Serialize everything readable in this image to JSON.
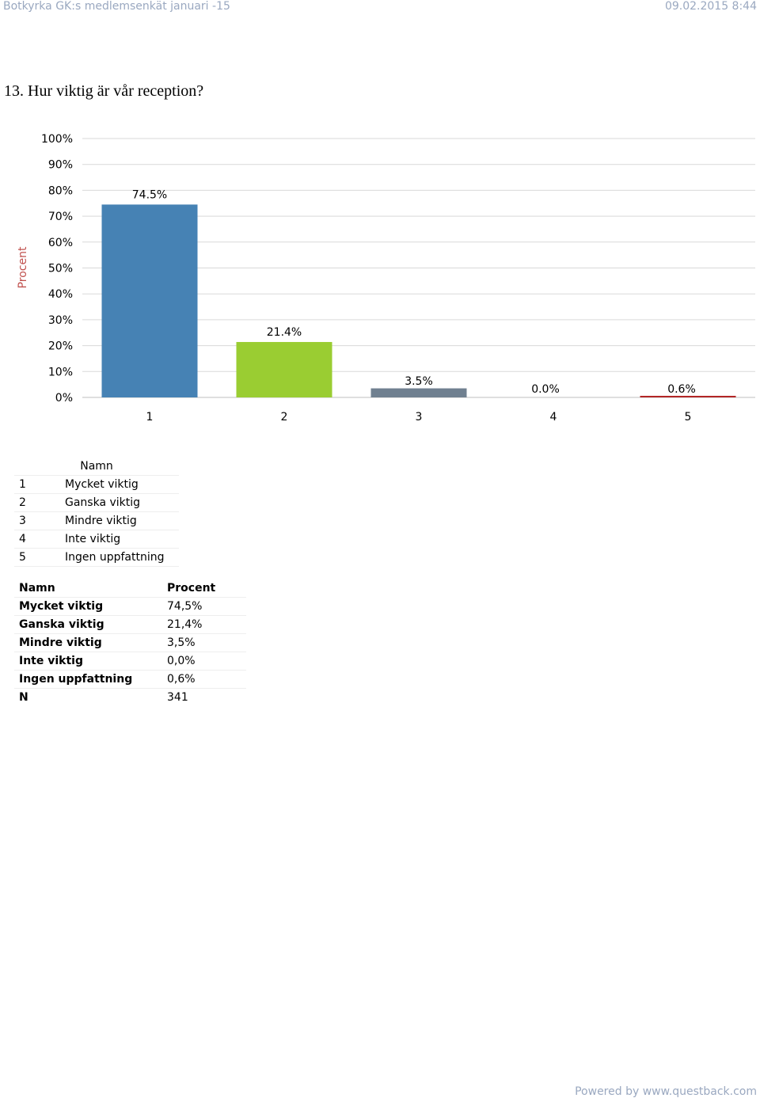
{
  "header": {
    "title": "Botkyrka GK:s medlemsenkät januari -15",
    "datetime": "09.02.2015 8:44"
  },
  "question": "13. Hur viktig är vår reception?",
  "chart_data": {
    "type": "bar",
    "categories": [
      "1",
      "2",
      "3",
      "4",
      "5"
    ],
    "values": [
      74.5,
      21.4,
      3.5,
      0.0,
      0.6
    ],
    "value_labels": [
      "74.5%",
      "21.4%",
      "3.5%",
      "0.0%",
      "0.6%"
    ],
    "colors": [
      "#4682b4",
      "#9acd32",
      "#708090",
      "#000080",
      "#b22222"
    ],
    "ylabel": "Procent",
    "ylim": [
      0,
      100
    ],
    "yticks": [
      "0%",
      "10%",
      "20%",
      "30%",
      "40%",
      "50%",
      "60%",
      "70%",
      "80%",
      "90%",
      "100%"
    ],
    "grid": true,
    "gridColor": "#d9d9d9"
  },
  "legend": {
    "header": "Namn",
    "rows": [
      {
        "num": "1",
        "label": "Mycket viktig"
      },
      {
        "num": "2",
        "label": "Ganska viktig"
      },
      {
        "num": "3",
        "label": "Mindre viktig"
      },
      {
        "num": "4",
        "label": "Inte viktig"
      },
      {
        "num": "5",
        "label": "Ingen uppfattning"
      }
    ]
  },
  "results": {
    "header_name": "Namn",
    "header_value": "Procent",
    "rows": [
      {
        "name": "Mycket viktig",
        "value": "74,5%"
      },
      {
        "name": "Ganska viktig",
        "value": "21,4%"
      },
      {
        "name": "Mindre viktig",
        "value": "3,5%"
      },
      {
        "name": "Inte viktig",
        "value": "0,0%"
      },
      {
        "name": "Ingen uppfattning",
        "value": "0,6%"
      },
      {
        "name": "N",
        "value": "341"
      }
    ]
  },
  "footer": "Powered by www.questback.com"
}
